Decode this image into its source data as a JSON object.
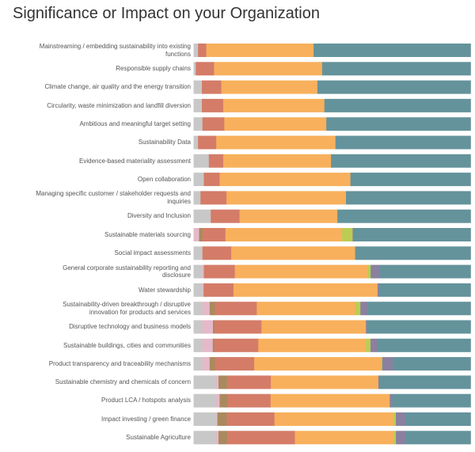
{
  "chart_data": {
    "type": "bar",
    "orientation": "horizontal",
    "stacked": true,
    "normalized_percent": true,
    "title": "Significance or Impact on your Organization",
    "xlim": [
      0,
      100
    ],
    "grid": false,
    "legend": "none",
    "categories": [
      "Mainstreaming / embedding sustainability into existing functions",
      "Responsible supply chains",
      "Climate change, air quality and the energy transition",
      "Circularity, waste minimization and landfill diversion",
      "Ambitious and meaningful target setting",
      "Sustainability Data",
      "Evidence-based materiality assessment",
      "Open collaboration",
      "Managing specific customer / stakeholder requests and inquiries",
      "Diversity and Inclusion",
      "Sustainable materials sourcing",
      "Social impact assessments",
      "General corporate sustainability reporting and disclosure",
      "Water stewardship",
      "Sustainability-driven breakthrough / disruptive innovation for products and services",
      "Disruptive technology and business models",
      "Sustainable buildings, cities and communities",
      "Product transparency and traceability mechanisms",
      "Sustainable chemistry and chemicals of concern",
      "Product LCA / hotspots analysis",
      "Impact investing / green finance",
      "Sustainable Agriculture"
    ],
    "series_colors": [
      "#c8c8c8",
      "#e4b9c9",
      "#a98a5e",
      "#d47c68",
      "#f8b05c",
      "#bccc52",
      "#8a80a0",
      "#64939c"
    ],
    "series": [
      {
        "values": [
          1.6,
          0.8,
          3.0,
          3.0,
          3.2,
          1.6,
          5.5,
          3.7,
          2.5,
          6.2,
          0,
          3.2,
          3.2,
          3.2,
          3.1,
          3.1,
          3.1,
          3.1,
          8.0,
          8.0,
          8.2,
          8.0
        ]
      },
      {
        "values": [
          0,
          0,
          0,
          0,
          0,
          0,
          0,
          0,
          0,
          0,
          2.0,
          0,
          0.5,
          0.4,
          2.7,
          3.9,
          3.9,
          2.7,
          1.0,
          1.4,
          0.4,
          1.0
        ]
      },
      {
        "values": [
          0,
          0,
          0,
          0,
          0,
          0,
          0,
          0,
          0,
          0,
          1.2,
          0,
          0,
          0,
          1.9,
          0.5,
          0.5,
          1.9,
          3.1,
          2.9,
          3.4,
          3.1
        ]
      },
      {
        "values": [
          3.0,
          6.6,
          7.0,
          7.7,
          7.9,
          6.6,
          5.2,
          5.7,
          9.4,
          10.4,
          8.3,
          10.4,
          11.2,
          10.8,
          15.1,
          17.0,
          16.1,
          14.2,
          15.8,
          15.5,
          17.2,
          24.5
        ]
      },
      {
        "values": [
          38.7,
          39.0,
          34.7,
          36.5,
          36.8,
          43.0,
          38.9,
          47.2,
          43.1,
          35.3,
          42.1,
          44.7,
          47.9,
          52.0,
          35.5,
          37.7,
          39.2,
          45.8,
          38.8,
          43.0,
          42.9,
          35.6
        ]
      },
      {
        "values": [
          0,
          0,
          0,
          0,
          0,
          0,
          0,
          0,
          0,
          0,
          3.8,
          0,
          1.1,
          0,
          1.9,
          0,
          1.7,
          0.4,
          0,
          0,
          0.9,
          0.9
        ]
      },
      {
        "values": [
          0,
          0,
          0,
          0,
          0,
          0,
          0,
          0,
          0,
          0,
          0.4,
          0,
          3.2,
          0.5,
          2.5,
          0.3,
          2.6,
          3.8,
          0.4,
          0.9,
          3.4,
          3.4
        ]
      },
      {
        "values": [
          56.7,
          53.6,
          55.3,
          52.8,
          52.1,
          48.8,
          50.4,
          43.4,
          45.0,
          48.1,
          42.2,
          41.7,
          32.9,
          33.1,
          37.3,
          37.5,
          33.9,
          28.1,
          32.9,
          28.3,
          23.6,
          23.6
        ]
      }
    ]
  }
}
